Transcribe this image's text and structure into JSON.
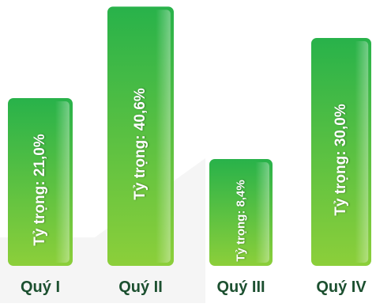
{
  "chart_data": {
    "type": "bar",
    "categories": [
      "Quý I",
      "Quý II",
      "Quý III",
      "Quý IV"
    ],
    "values": [
      21.0,
      40.6,
      8.4,
      30.0
    ],
    "data_labels": [
      "Tỷ trọng: 21,0%",
      "Tỷ trọng: 40,6%",
      "Tỷ trọng: 8,4%",
      "Tỷ trọng: 30,0%"
    ],
    "title": "",
    "xlabel": "",
    "ylabel": "",
    "grid": false,
    "legend": "none"
  },
  "colors": {
    "bar_top": "#28b24a",
    "bar_bottom": "#8ccf3a",
    "category_text": "#1c5030",
    "background_shape": "#eeeeee"
  }
}
